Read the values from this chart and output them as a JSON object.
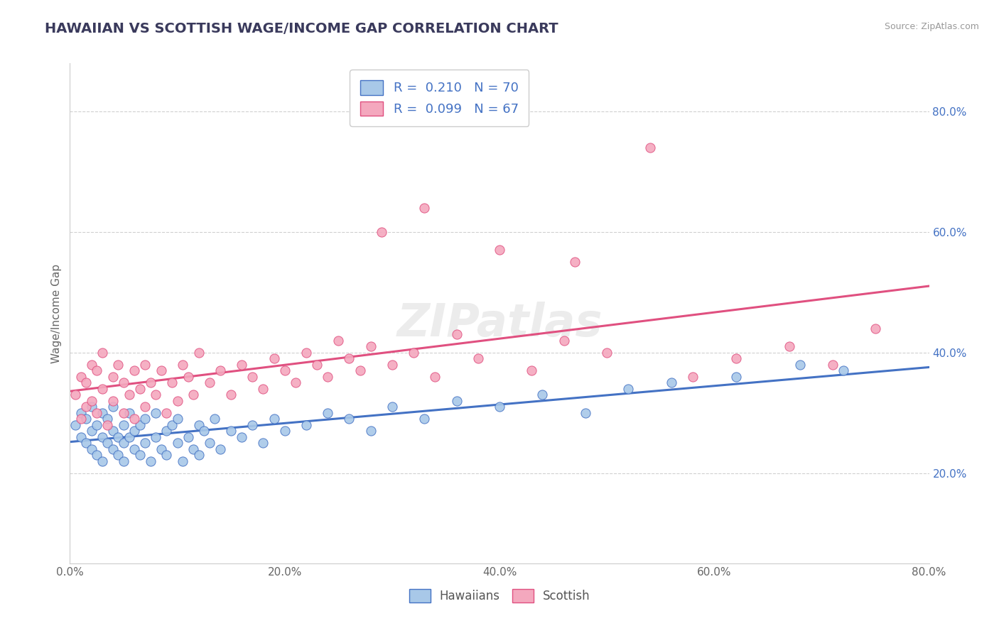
{
  "title": "HAWAIIAN VS SCOTTISH WAGE/INCOME GAP CORRELATION CHART",
  "source_text": "Source: ZipAtlas.com",
  "ylabel": "Wage/Income Gap",
  "xmin": 0.0,
  "xmax": 0.8,
  "ymin": 0.05,
  "ymax": 0.88,
  "x_tick_labels": [
    "0.0%",
    "20.0%",
    "40.0%",
    "60.0%",
    "80.0%"
  ],
  "x_tick_vals": [
    0.0,
    0.2,
    0.4,
    0.6,
    0.8
  ],
  "y_tick_labels": [
    "20.0%",
    "40.0%",
    "60.0%",
    "80.0%"
  ],
  "y_tick_vals": [
    0.2,
    0.4,
    0.6,
    0.8
  ],
  "title_color": "#3a3a5c",
  "title_fontsize": 14,
  "hawaiian_color": "#a8c8e8",
  "scottish_color": "#f4a8be",
  "hawaiian_edge_color": "#4472c4",
  "scottish_edge_color": "#e05080",
  "hawaiian_line_color": "#4472c4",
  "scottish_line_color": "#e05080",
  "legend_label_1": "R =  0.210   N = 70",
  "legend_label_2": "R =  0.099   N = 67",
  "legend_color": "#4472c4",
  "watermark": "ZIPatlas",
  "bottom_legend_hawaiians": "Hawaiians",
  "bottom_legend_scottish": "Scottish",
  "hawaiian_x": [
    0.005,
    0.01,
    0.01,
    0.015,
    0.015,
    0.02,
    0.02,
    0.02,
    0.025,
    0.025,
    0.03,
    0.03,
    0.03,
    0.035,
    0.035,
    0.04,
    0.04,
    0.04,
    0.045,
    0.045,
    0.05,
    0.05,
    0.05,
    0.055,
    0.055,
    0.06,
    0.06,
    0.065,
    0.065,
    0.07,
    0.07,
    0.075,
    0.08,
    0.08,
    0.085,
    0.09,
    0.09,
    0.095,
    0.1,
    0.1,
    0.105,
    0.11,
    0.115,
    0.12,
    0.12,
    0.125,
    0.13,
    0.135,
    0.14,
    0.15,
    0.16,
    0.17,
    0.18,
    0.19,
    0.2,
    0.22,
    0.24,
    0.26,
    0.28,
    0.3,
    0.33,
    0.36,
    0.4,
    0.44,
    0.48,
    0.52,
    0.56,
    0.62,
    0.68,
    0.72
  ],
  "hawaiian_y": [
    0.28,
    0.26,
    0.3,
    0.25,
    0.29,
    0.24,
    0.27,
    0.31,
    0.23,
    0.28,
    0.26,
    0.3,
    0.22,
    0.25,
    0.29,
    0.24,
    0.27,
    0.31,
    0.23,
    0.26,
    0.25,
    0.28,
    0.22,
    0.26,
    0.3,
    0.24,
    0.27,
    0.23,
    0.28,
    0.25,
    0.29,
    0.22,
    0.26,
    0.3,
    0.24,
    0.27,
    0.23,
    0.28,
    0.25,
    0.29,
    0.22,
    0.26,
    0.24,
    0.28,
    0.23,
    0.27,
    0.25,
    0.29,
    0.24,
    0.27,
    0.26,
    0.28,
    0.25,
    0.29,
    0.27,
    0.28,
    0.3,
    0.29,
    0.27,
    0.31,
    0.29,
    0.32,
    0.31,
    0.33,
    0.3,
    0.34,
    0.35,
    0.36,
    0.38,
    0.37
  ],
  "scottish_x": [
    0.005,
    0.01,
    0.01,
    0.015,
    0.015,
    0.02,
    0.02,
    0.025,
    0.025,
    0.03,
    0.03,
    0.035,
    0.04,
    0.04,
    0.045,
    0.05,
    0.05,
    0.055,
    0.06,
    0.06,
    0.065,
    0.07,
    0.07,
    0.075,
    0.08,
    0.085,
    0.09,
    0.095,
    0.1,
    0.105,
    0.11,
    0.115,
    0.12,
    0.13,
    0.14,
    0.15,
    0.16,
    0.17,
    0.18,
    0.19,
    0.2,
    0.21,
    0.22,
    0.23,
    0.24,
    0.25,
    0.26,
    0.27,
    0.28,
    0.3,
    0.32,
    0.34,
    0.36,
    0.38,
    0.4,
    0.43,
    0.46,
    0.5,
    0.54,
    0.58,
    0.62,
    0.67,
    0.71,
    0.75,
    0.29,
    0.33,
    0.47
  ],
  "scottish_y": [
    0.33,
    0.36,
    0.29,
    0.35,
    0.31,
    0.38,
    0.32,
    0.37,
    0.3,
    0.34,
    0.4,
    0.28,
    0.36,
    0.32,
    0.38,
    0.3,
    0.35,
    0.33,
    0.37,
    0.29,
    0.34,
    0.31,
    0.38,
    0.35,
    0.33,
    0.37,
    0.3,
    0.35,
    0.32,
    0.38,
    0.36,
    0.33,
    0.4,
    0.35,
    0.37,
    0.33,
    0.38,
    0.36,
    0.34,
    0.39,
    0.37,
    0.35,
    0.4,
    0.38,
    0.36,
    0.42,
    0.39,
    0.37,
    0.41,
    0.38,
    0.4,
    0.36,
    0.43,
    0.39,
    0.57,
    0.37,
    0.42,
    0.4,
    0.74,
    0.36,
    0.39,
    0.41,
    0.38,
    0.44,
    0.6,
    0.64,
    0.55
  ],
  "background_color": "#ffffff",
  "grid_color": "#d0d0d0",
  "spine_color": "#cccccc"
}
